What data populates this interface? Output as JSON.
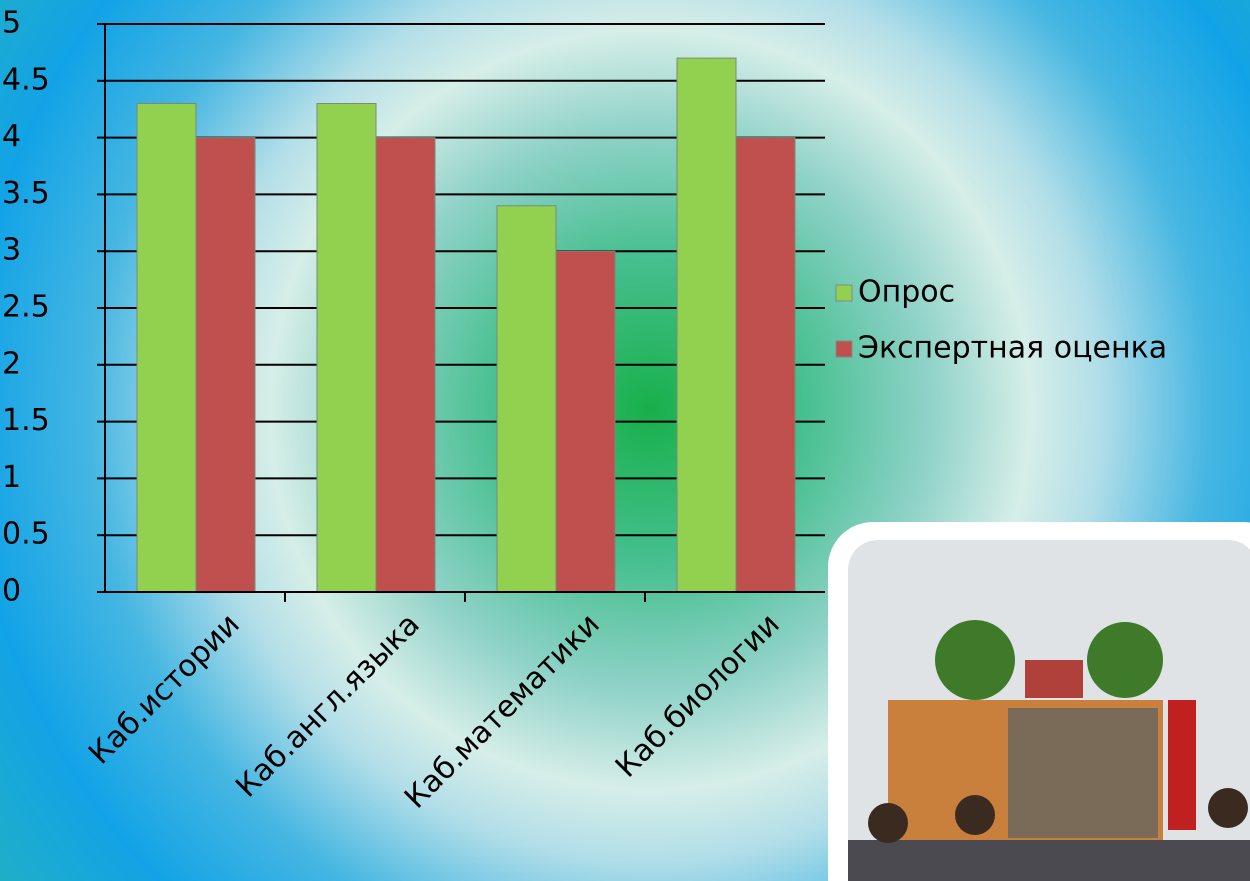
{
  "chart_data": {
    "type": "bar",
    "categories": [
      "Каб.истории",
      "Каб.англ.языка",
      "Каб.математики",
      "Каб.биологии"
    ],
    "series": [
      {
        "name": "Опрос",
        "color": "#92d050",
        "values": [
          4.3,
          4.3,
          3.4,
          4.7
        ]
      },
      {
        "name": "Экспертная оценка",
        "color": "#c0504d",
        "values": [
          4.0,
          4.0,
          3.0,
          4.0
        ]
      }
    ],
    "ylim": [
      0,
      5
    ],
    "yticks": [
      0,
      0.5,
      1,
      1.5,
      2,
      2.5,
      3,
      3.5,
      4,
      4.5,
      5
    ],
    "grid": true,
    "legend": "right"
  }
}
